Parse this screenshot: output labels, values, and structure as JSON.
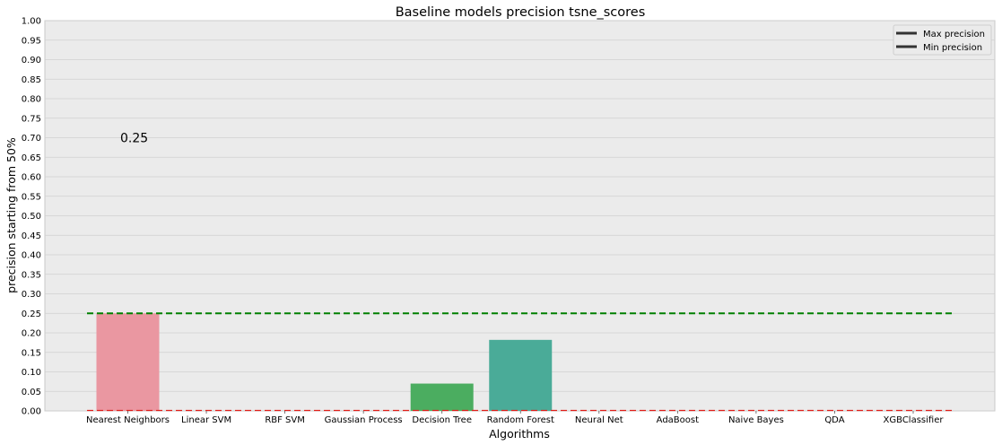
{
  "chart_data": {
    "type": "bar",
    "title": "Baseline models precision tsne_scores",
    "xlabel": "Algorithms",
    "ylabel": "precision starting from 50%",
    "ylim": [
      0,
      1.0
    ],
    "ytick_step": 0.05,
    "yticks": [
      "0.00",
      "0.05",
      "0.10",
      "0.15",
      "0.20",
      "0.25",
      "0.30",
      "0.35",
      "0.40",
      "0.45",
      "0.50",
      "0.55",
      "0.60",
      "0.65",
      "0.70",
      "0.75",
      "0.80",
      "0.85",
      "0.90",
      "0.95",
      "1.00"
    ],
    "grid": true,
    "categories": [
      "Nearest Neighbors",
      "Linear SVM",
      "RBF SVM",
      "Gaussian Process",
      "Decision Tree",
      "Random Forest",
      "Neural Net",
      "AdaBoost",
      "Naive Bayes",
      "QDA",
      "XGBClassifier"
    ],
    "values": [
      0.25,
      0,
      0,
      0,
      0.07,
      0.182,
      0,
      0,
      0,
      0,
      0
    ],
    "bar_colors": [
      "#ea97a1",
      "#d9a96b",
      "#b7b04f",
      "#8db84f",
      "#4bad60",
      "#4aab98",
      "#4ba9b3",
      "#5ba9d6",
      "#a1a1e6",
      "#d98fe6",
      "#e88fc4"
    ],
    "max_line": {
      "value": 0.25,
      "color": "#008000",
      "label": "Max precision"
    },
    "min_line": {
      "value": 0.0,
      "color": "#e0201b",
      "label": "Min precision"
    },
    "annotation": {
      "text": "0.25",
      "x_category": 0,
      "y": 0.7
    },
    "legend": {
      "placement": "top-right",
      "entries": [
        "Max precision",
        "Min precision"
      ]
    },
    "colors": {
      "background": "#ebebeb",
      "grid": "#d0d0d0"
    }
  }
}
